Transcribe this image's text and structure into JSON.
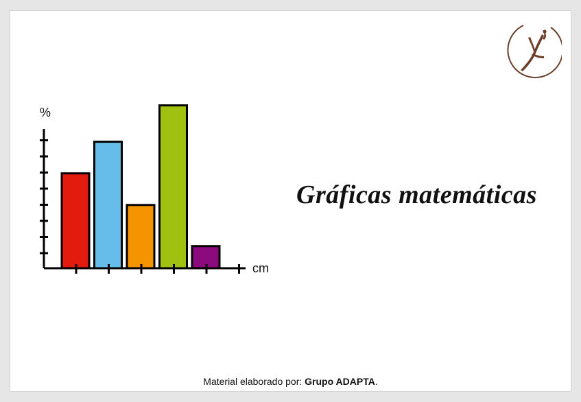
{
  "title": "Gráficas matemáticas",
  "footer": {
    "prefix": "Material elaborado por:",
    "group": "Grupo ADAPTA",
    "suffix": "."
  },
  "colors": {
    "background": "#e6e6e6",
    "slide": "#ffffff",
    "logo_brown": "#6b3f2a"
  },
  "icons": {
    "logo": "dancer-silhouette-circle-logo"
  },
  "chart_data": {
    "type": "bar",
    "title": "",
    "xlabel": "cm",
    "ylabel": "%",
    "categories": [
      "",
      "",
      "",
      "",
      ""
    ],
    "values": [
      6,
      8,
      4,
      10.3,
      1.4
    ],
    "ylim": [
      0,
      10.5
    ],
    "y_ticks": 8,
    "x_ticks": 6,
    "grid": false,
    "legend": "none",
    "bar_colors": [
      "#e21b0e",
      "#66bde9",
      "#f39400",
      "#a0c10f",
      "#8b0a7e"
    ]
  }
}
